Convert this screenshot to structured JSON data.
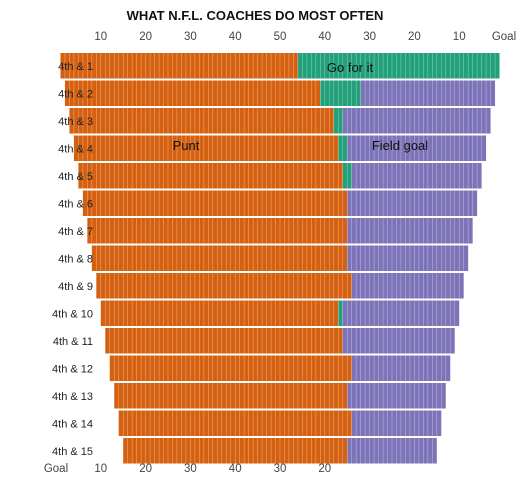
{
  "chart_data": {
    "type": "bar",
    "title": "WHAT N.F.L. COACHES DO MOST OFTEN",
    "x_axis": {
      "description": "Yards from opponent goal line (own goal at left, opponent goal at right)",
      "ticks_top": [
        "10",
        "20",
        "30",
        "40",
        "50",
        "40",
        "30",
        "20",
        "10",
        "Goal"
      ],
      "ticks_bottom": [
        "Goal",
        "10",
        "20",
        "30",
        "40",
        "30",
        "20"
      ]
    },
    "categories": [
      "4th & 1",
      "4th & 2",
      "4th & 3",
      "4th & 4",
      "4th & 5",
      "4th & 6",
      "4th & 7",
      "4th & 8",
      "4th & 9",
      "4th & 10",
      "4th & 11",
      "4th & 12",
      "4th & 13",
      "4th & 14",
      "4th & 15"
    ],
    "series_labels": {
      "punt": "Punt",
      "go": "Go for it",
      "fg": "Field goal"
    },
    "colors": {
      "punt": "#d5600f",
      "go": "#21a07a",
      "fg": "#7c73b8",
      "divider": "#ffffff"
    },
    "rows": [
      {
        "label": "4th & 1",
        "segments": [
          {
            "t": "punt",
            "from": 1,
            "to": 54
          },
          {
            "t": "go",
            "from": 54,
            "to": 99
          }
        ]
      },
      {
        "label": "4th & 2",
        "segments": [
          {
            "t": "punt",
            "from": 2,
            "to": 59
          },
          {
            "t": "go",
            "from": 59,
            "to": 68
          },
          {
            "t": "fg",
            "from": 68,
            "to": 98
          }
        ]
      },
      {
        "label": "4th & 3",
        "segments": [
          {
            "t": "punt",
            "from": 3,
            "to": 62
          },
          {
            "t": "go",
            "from": 62,
            "to": 64
          },
          {
            "t": "fg",
            "from": 64,
            "to": 97
          }
        ]
      },
      {
        "label": "4th & 4",
        "segments": [
          {
            "t": "punt",
            "from": 4,
            "to": 63
          },
          {
            "t": "go",
            "from": 63,
            "to": 65
          },
          {
            "t": "fg",
            "from": 65,
            "to": 96
          }
        ]
      },
      {
        "label": "4th & 5",
        "segments": [
          {
            "t": "punt",
            "from": 5,
            "to": 64
          },
          {
            "t": "go",
            "from": 64,
            "to": 66
          },
          {
            "t": "fg",
            "from": 66,
            "to": 95
          }
        ]
      },
      {
        "label": "4th & 6",
        "segments": [
          {
            "t": "punt",
            "from": 6,
            "to": 65
          },
          {
            "t": "fg",
            "from": 65,
            "to": 94
          }
        ]
      },
      {
        "label": "4th & 7",
        "segments": [
          {
            "t": "punt",
            "from": 7,
            "to": 65
          },
          {
            "t": "fg",
            "from": 65,
            "to": 93
          }
        ]
      },
      {
        "label": "4th & 8",
        "segments": [
          {
            "t": "punt",
            "from": 8,
            "to": 65
          },
          {
            "t": "fg",
            "from": 65,
            "to": 92
          }
        ]
      },
      {
        "label": "4th & 9",
        "segments": [
          {
            "t": "punt",
            "from": 9,
            "to": 66
          },
          {
            "t": "fg",
            "from": 66,
            "to": 91
          }
        ]
      },
      {
        "label": "4th & 10",
        "segments": [
          {
            "t": "punt",
            "from": 10,
            "to": 63
          },
          {
            "t": "go",
            "from": 63,
            "to": 64
          },
          {
            "t": "fg",
            "from": 64,
            "to": 90
          }
        ]
      },
      {
        "label": "4th & 11",
        "segments": [
          {
            "t": "punt",
            "from": 11,
            "to": 64
          },
          {
            "t": "fg",
            "from": 64,
            "to": 89
          }
        ]
      },
      {
        "label": "4th & 12",
        "segments": [
          {
            "t": "punt",
            "from": 12,
            "to": 66
          },
          {
            "t": "fg",
            "from": 66,
            "to": 88
          }
        ]
      },
      {
        "label": "4th & 13",
        "segments": [
          {
            "t": "punt",
            "from": 13,
            "to": 65
          },
          {
            "t": "fg",
            "from": 65,
            "to": 87
          }
        ]
      },
      {
        "label": "4th & 14",
        "segments": [
          {
            "t": "punt",
            "from": 14,
            "to": 66
          },
          {
            "t": "fg",
            "from": 66,
            "to": 86
          }
        ]
      },
      {
        "label": "4th & 15",
        "segments": [
          {
            "t": "punt",
            "from": 15,
            "to": 65
          },
          {
            "t": "fg",
            "from": 65,
            "to": 85
          }
        ]
      }
    ]
  }
}
